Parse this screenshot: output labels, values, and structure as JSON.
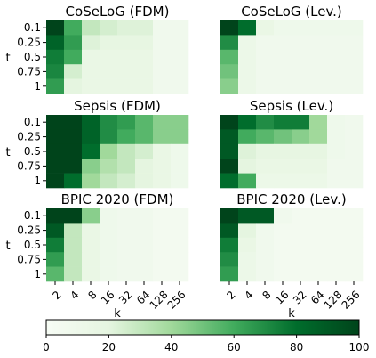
{
  "chart_data": {
    "type": "heatmap",
    "rows": [
      "0.1",
      "0.25",
      "0.5",
      "0.75",
      "1"
    ],
    "cols": [
      "2",
      "4",
      "8",
      "16",
      "32",
      "64",
      "128",
      "256"
    ],
    "ylabel": "t",
    "xlabel": "k",
    "colorbar": {
      "min": 0,
      "max": 100,
      "ticks": [
        "0",
        "20",
        "40",
        "60",
        "80",
        "100"
      ],
      "low_color": "#f7fcf5",
      "high_color": "#00441b"
    },
    "panels": [
      {
        "title": "CoSeLoG (FDM)",
        "values": [
          [
            100,
            60,
            30,
            25,
            22,
            22,
            8,
            8
          ],
          [
            85,
            65,
            22,
            18,
            18,
            18,
            8,
            8
          ],
          [
            75,
            60,
            15,
            15,
            15,
            15,
            8,
            8
          ],
          [
            72,
            25,
            15,
            15,
            15,
            15,
            8,
            8
          ],
          [
            65,
            20,
            15,
            15,
            15,
            15,
            8,
            8
          ]
        ]
      },
      {
        "title": "CoSeLoG (Lev.)",
        "values": [
          [
            100,
            80,
            15,
            10,
            10,
            10,
            10,
            10
          ],
          [
            70,
            12,
            8,
            8,
            8,
            8,
            8,
            8
          ],
          [
            55,
            12,
            8,
            8,
            8,
            8,
            8,
            8
          ],
          [
            50,
            12,
            8,
            8,
            8,
            8,
            8,
            8
          ],
          [
            45,
            12,
            8,
            8,
            8,
            8,
            8,
            8
          ]
        ]
      },
      {
        "title": "Sepsis (FDM)",
        "values": [
          [
            100,
            100,
            85,
            70,
            65,
            55,
            45,
            45
          ],
          [
            100,
            100,
            85,
            70,
            60,
            55,
            45,
            45
          ],
          [
            100,
            100,
            80,
            40,
            30,
            25,
            15,
            10
          ],
          [
            100,
            100,
            45,
            35,
            30,
            20,
            15,
            10
          ],
          [
            100,
            80,
            40,
            30,
            25,
            20,
            15,
            10
          ]
        ]
      },
      {
        "title": "Sepsis (Lev.)",
        "values": [
          [
            100,
            80,
            70,
            75,
            75,
            40,
            10,
            8
          ],
          [
            90,
            60,
            55,
            50,
            45,
            40,
            10,
            8
          ],
          [
            90,
            22,
            18,
            18,
            18,
            18,
            10,
            8
          ],
          [
            100,
            20,
            15,
            15,
            15,
            15,
            8,
            8
          ],
          [
            80,
            60,
            12,
            12,
            12,
            12,
            8,
            8
          ]
        ]
      },
      {
        "title": "BPIC 2020 (FDM)",
        "values": [
          [
            100,
            100,
            45,
            10,
            8,
            8,
            5,
            5
          ],
          [
            90,
            30,
            15,
            10,
            8,
            8,
            5,
            5
          ],
          [
            75,
            30,
            15,
            10,
            8,
            8,
            5,
            5
          ],
          [
            65,
            30,
            15,
            10,
            8,
            8,
            5,
            5
          ],
          [
            55,
            30,
            15,
            10,
            8,
            8,
            5,
            5
          ]
        ]
      },
      {
        "title": "BPIC 2020 (Lev.)",
        "values": [
          [
            100,
            90,
            90,
            8,
            5,
            5,
            5,
            5
          ],
          [
            90,
            20,
            8,
            5,
            5,
            5,
            5,
            5
          ],
          [
            75,
            15,
            8,
            5,
            5,
            5,
            5,
            5
          ],
          [
            70,
            12,
            8,
            5,
            5,
            5,
            5,
            5
          ],
          [
            65,
            12,
            8,
            5,
            5,
            5,
            5,
            5
          ]
        ]
      }
    ]
  }
}
